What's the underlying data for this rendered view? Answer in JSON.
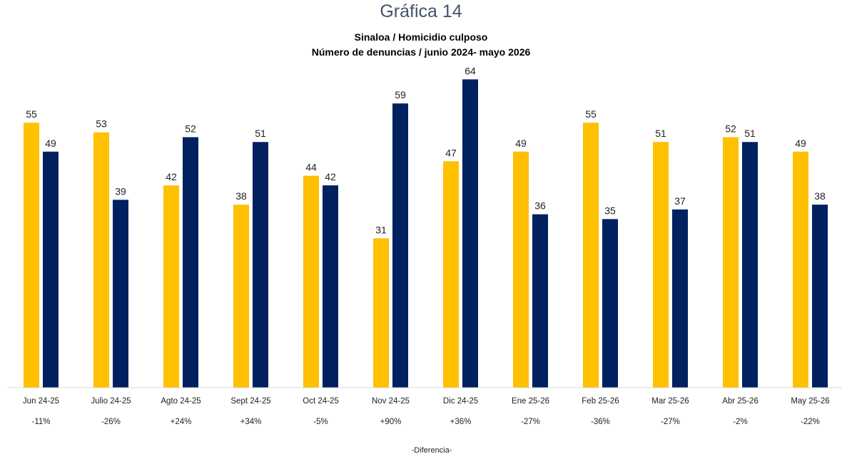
{
  "page_title": "Gráfica 14",
  "footer_label": "-Diferencia-",
  "colors": {
    "series_2024_25": "#ffc000",
    "series_2025_26": "#002060",
    "axis": "#d9d9d9"
  },
  "chart_data": {
    "type": "bar",
    "title": "Sinaloa / Homicidio culposo",
    "subtitle": "Número de denuncias / junio 2024- mayo 2026",
    "xlabel": "",
    "ylabel": "",
    "ylim": [
      0,
      64
    ],
    "grid": false,
    "legend": "none",
    "categories": [
      "Jun 24-25",
      "Julio 24-25",
      "Agto 24-25",
      "Sept 24-25",
      "Oct 24-25",
      "Nov 24-25",
      "Dic 24-25",
      "Ene 25-26",
      "Feb 25-26",
      "Mar 25-26",
      "Abr 25-26",
      "May 25-26"
    ],
    "series": [
      {
        "values": [
          55,
          53,
          42,
          38,
          44,
          31,
          47,
          49,
          55,
          51,
          52,
          49
        ]
      },
      {
        "values": [
          49,
          39,
          52,
          51,
          42,
          59,
          64,
          36,
          35,
          37,
          51,
          38
        ]
      }
    ],
    "differences": [
      "-11%",
      "-26%",
      "+24%",
      "+34%",
      "-5%",
      "+90%",
      "+36%",
      "-27%",
      "-36%",
      "-27%",
      "-2%",
      "-22%"
    ]
  }
}
